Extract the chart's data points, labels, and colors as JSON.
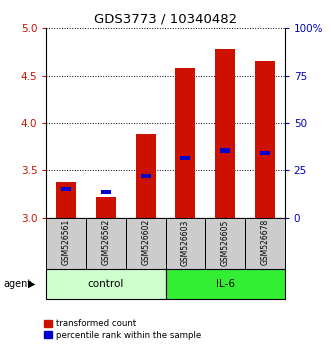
{
  "title": "GDS3773 / 10340482",
  "samples": [
    "GSM526561",
    "GSM526562",
    "GSM526602",
    "GSM526603",
    "GSM526605",
    "GSM526678"
  ],
  "red_bars_top": [
    3.38,
    3.22,
    3.88,
    4.58,
    4.78,
    4.65
  ],
  "blue_marks": [
    3.3,
    3.27,
    3.44,
    3.63,
    3.71,
    3.68
  ],
  "ylim": [
    3.0,
    5.0
  ],
  "yticks_left": [
    3.0,
    3.5,
    4.0,
    4.5,
    5.0
  ],
  "yticks_right_pct": [
    0,
    25,
    50,
    75,
    100
  ],
  "y_right_labels": [
    "0",
    "25",
    "50",
    "75",
    "100%"
  ],
  "bar_color": "#cc1100",
  "blue_color": "#0000cc",
  "bar_width": 0.5,
  "legend_items": [
    {
      "color": "#cc1100",
      "label": "transformed count"
    },
    {
      "color": "#0000cc",
      "label": "percentile rank within the sample"
    }
  ],
  "ctrl_color": "#ccffcc",
  "il6_color": "#33ee33",
  "sample_bg": "#cccccc",
  "left_tick_color": "#cc1100",
  "right_tick_color": "#0000bb"
}
